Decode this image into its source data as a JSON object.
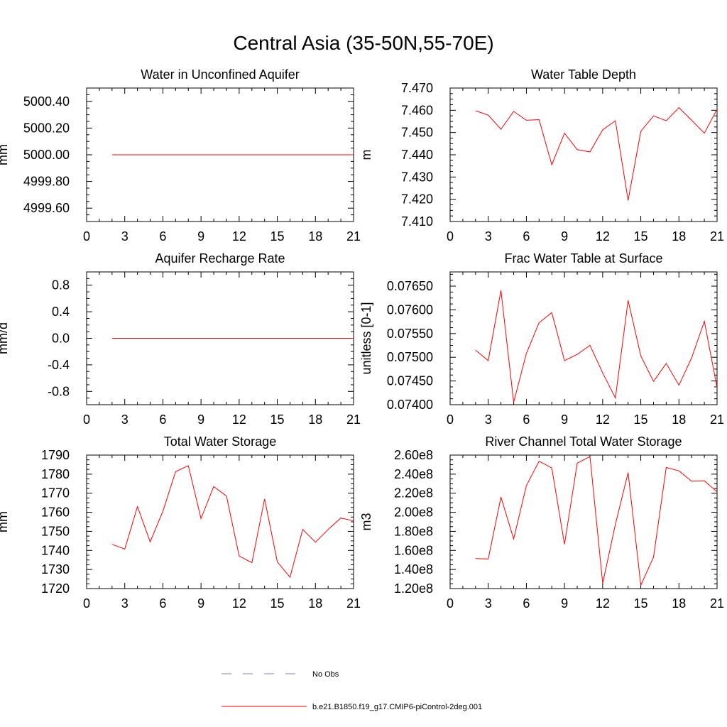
{
  "figure": {
    "title": "Central Asia (35-50N,55-70E)"
  },
  "legend": [
    {
      "label": "No Obs",
      "color": "#7f7fbf",
      "style": "dashed"
    },
    {
      "label": "b.e21.B1850.f19_g17.CMIP6-piControl-2deg.001",
      "color": "#ff0000",
      "style": "solid"
    }
  ],
  "chart_data": [
    {
      "type": "line",
      "title": "Water in Unconfined Aquifer",
      "ylabel": "mm",
      "xlim": [
        0,
        21
      ],
      "ylim": [
        4999.5,
        5000.5
      ],
      "xticks": [
        0,
        3,
        6,
        9,
        12,
        15,
        18,
        21
      ],
      "yticks": [
        4999.6,
        4999.8,
        5000.0,
        5000.2,
        5000.4
      ],
      "ytick_labels": [
        "4999.60",
        "4999.80",
        "5000.00",
        "5000.20",
        "5000.40"
      ],
      "x": [
        2,
        3,
        4,
        5,
        6,
        7,
        8,
        9,
        10,
        11,
        12,
        13,
        14,
        15,
        16,
        17,
        18,
        19,
        20,
        21
      ],
      "series": [
        {
          "color": "#ff0000",
          "values": [
            5000,
            5000,
            5000,
            5000,
            5000,
            5000,
            5000,
            5000,
            5000,
            5000,
            5000,
            5000,
            5000,
            5000,
            5000,
            5000,
            5000,
            5000,
            5000,
            5000
          ]
        }
      ]
    },
    {
      "type": "line",
      "title": "Water Table Depth",
      "ylabel": "m",
      "xlim": [
        0,
        21
      ],
      "ylim": [
        7.41,
        7.47
      ],
      "xticks": [
        0,
        3,
        6,
        9,
        12,
        15,
        18,
        21
      ],
      "yticks": [
        7.41,
        7.42,
        7.43,
        7.44,
        7.45,
        7.46,
        7.47
      ],
      "ytick_labels": [
        "7.410",
        "7.420",
        "7.430",
        "7.440",
        "7.450",
        "7.460",
        "7.470"
      ],
      "x": [
        2,
        3,
        4,
        5,
        6,
        7,
        8,
        9,
        10,
        11,
        12,
        13,
        14,
        15,
        16,
        17,
        18,
        19,
        20,
        21
      ],
      "series": [
        {
          "color": "#ff0000",
          "values": [
            7.4598,
            7.4578,
            7.4515,
            7.4595,
            7.4555,
            7.4558,
            7.4355,
            7.4497,
            7.4423,
            7.4413,
            7.4512,
            7.4553,
            7.4195,
            7.4505,
            7.4575,
            7.4553,
            7.4612,
            7.4555,
            7.4497,
            7.4605
          ]
        }
      ]
    },
    {
      "type": "line",
      "title": "Aquifer Recharge Rate",
      "ylabel": "mm/d",
      "xlim": [
        0,
        21
      ],
      "ylim": [
        -1.0,
        1.0
      ],
      "xticks": [
        0,
        3,
        6,
        9,
        12,
        15,
        18,
        21
      ],
      "yticks": [
        -0.8,
        -0.4,
        0.0,
        0.4,
        0.8
      ],
      "ytick_labels": [
        "-0.8",
        "-0.4",
        "0.0",
        "0.4",
        "0.8"
      ],
      "x": [
        2,
        3,
        4,
        5,
        6,
        7,
        8,
        9,
        10,
        11,
        12,
        13,
        14,
        15,
        16,
        17,
        18,
        19,
        20,
        21
      ],
      "series": [
        {
          "color": "#ff0000",
          "values": [
            0,
            0,
            0,
            0,
            0,
            0,
            0,
            0,
            0,
            0,
            0,
            0,
            0,
            0,
            0,
            0,
            0,
            0,
            0,
            0
          ]
        }
      ]
    },
    {
      "type": "line",
      "title": "Frac Water Table at Surface",
      "ylabel": "unitless [0-1]",
      "xlim": [
        0,
        21
      ],
      "ylim": [
        0.074,
        0.0768
      ],
      "xticks": [
        0,
        3,
        6,
        9,
        12,
        15,
        18,
        21
      ],
      "yticks": [
        0.074,
        0.0745,
        0.075,
        0.0755,
        0.076,
        0.0765
      ],
      "ytick_labels": [
        "0.07400",
        "0.07450",
        "0.07500",
        "0.07550",
        "0.07600",
        "0.07650"
      ],
      "x": [
        2,
        3,
        4,
        5,
        6,
        7,
        8,
        9,
        10,
        11,
        12,
        13,
        14,
        15,
        16,
        17,
        18,
        19,
        20,
        21
      ],
      "series": [
        {
          "color": "#ff0000",
          "values": [
            0.07515,
            0.07493,
            0.07641,
            0.07405,
            0.07508,
            0.07573,
            0.07594,
            0.07493,
            0.07506,
            0.07525,
            0.07467,
            0.07414,
            0.0762,
            0.07503,
            0.07449,
            0.07487,
            0.07441,
            0.07499,
            0.07576,
            0.07436
          ]
        }
      ]
    },
    {
      "type": "line",
      "title": "Total Water Storage",
      "ylabel": "mm",
      "xlim": [
        0,
        21
      ],
      "ylim": [
        1720,
        1790
      ],
      "xticks": [
        0,
        3,
        6,
        9,
        12,
        15,
        18,
        21
      ],
      "yticks": [
        1720,
        1730,
        1740,
        1750,
        1760,
        1770,
        1780,
        1790
      ],
      "ytick_labels": [
        "1720",
        "1730",
        "1740",
        "1750",
        "1760",
        "1770",
        "1780",
        "1790"
      ],
      "x": [
        2,
        3,
        4,
        5,
        6,
        7,
        8,
        9,
        10,
        11,
        12,
        13,
        14,
        15,
        16,
        17,
        18,
        19,
        20,
        21
      ],
      "series": [
        {
          "color": "#ff0000",
          "values": [
            1743.2,
            1740.7,
            1763.0,
            1744.5,
            1760.5,
            1781.3,
            1784.5,
            1756.7,
            1773.5,
            1768.5,
            1737.0,
            1733.6,
            1767.0,
            1734.0,
            1726.0,
            1751.0,
            1744.3,
            1751.0,
            1757.0,
            1755.5
          ]
        }
      ]
    },
    {
      "type": "line",
      "title": "River Channel Total Water Storage",
      "ylabel": "m3",
      "xlim": [
        0,
        21
      ],
      "ylim": [
        120000000,
        260000000
      ],
      "xticks": [
        0,
        3,
        6,
        9,
        12,
        15,
        18,
        21
      ],
      "yticks": [
        120000000,
        140000000,
        160000000,
        180000000,
        200000000,
        220000000,
        240000000,
        260000000
      ],
      "ytick_labels": [
        "1.20e8",
        "1.40e8",
        "1.60e8",
        "1.80e8",
        "2.00e8",
        "2.20e8",
        "2.40e8",
        "2.60e8"
      ],
      "x": [
        2,
        3,
        4,
        5,
        6,
        7,
        8,
        9,
        10,
        11,
        12,
        13,
        14,
        15,
        16,
        17,
        18,
        19,
        20,
        21
      ],
      "series": [
        {
          "color": "#ff0000",
          "values": [
            151500000,
            151000000,
            216000000,
            172000000,
            228000000,
            253500000,
            246500000,
            166500000,
            251500000,
            258500000,
            125500000,
            187500000,
            241500000,
            123500000,
            153000000,
            247000000,
            243500000,
            232500000,
            233000000,
            221500000
          ]
        }
      ]
    }
  ]
}
